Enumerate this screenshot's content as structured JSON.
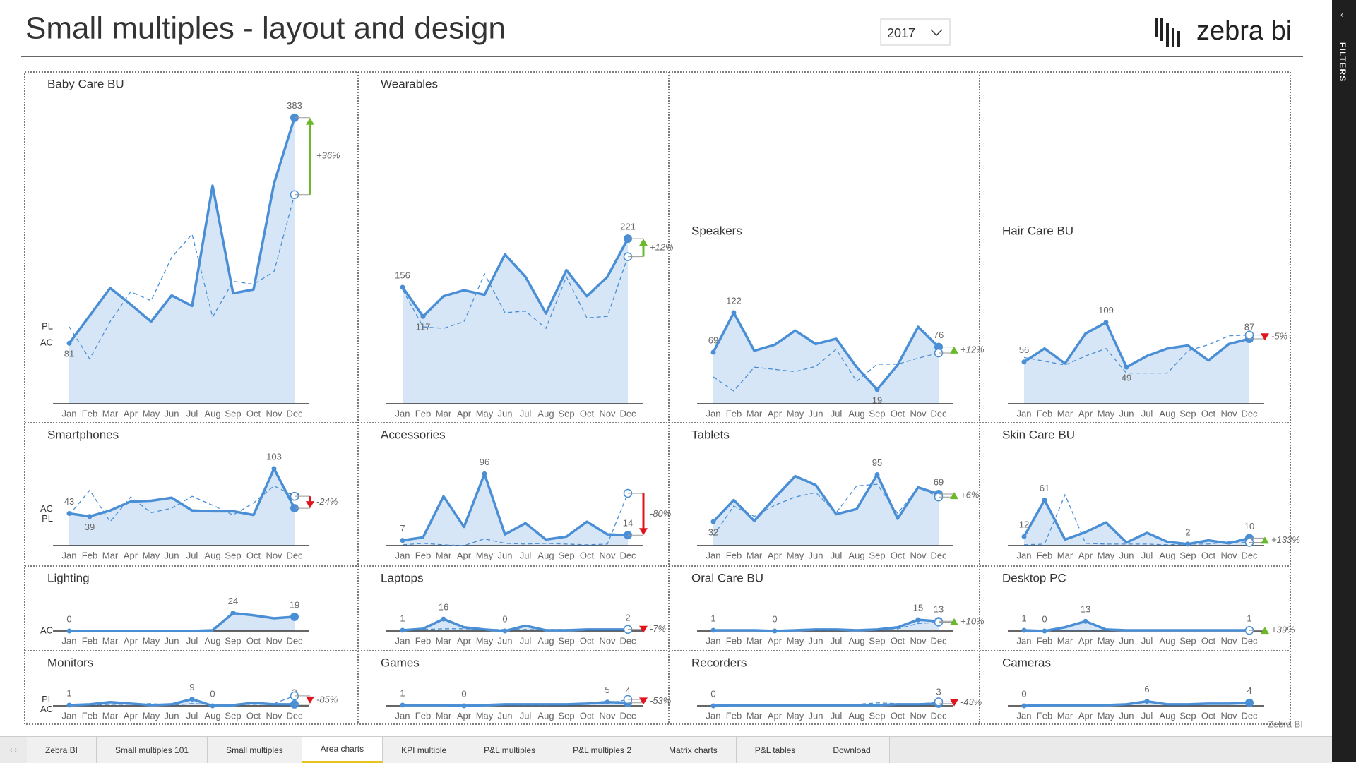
{
  "header": {
    "title": "Small multiples - layout and design",
    "year": "2017",
    "logo": "zebra bi",
    "filters": "FILTERS",
    "watermark": "Zebra BI"
  },
  "months": [
    "Jan",
    "Feb",
    "Mar",
    "Apr",
    "May",
    "Jun",
    "Jul",
    "Aug",
    "Sep",
    "Oct",
    "Nov",
    "Dec"
  ],
  "legend": {
    "ac": "AC",
    "pl": "PL"
  },
  "panels": [
    {
      "name": "Baby Care BU",
      "ac": [
        81,
        118,
        155,
        133,
        110,
        145,
        131,
        292,
        148,
        153,
        295,
        383
      ],
      "pl": [
        103,
        60,
        110,
        150,
        138,
        196,
        227,
        116,
        164,
        160,
        177,
        280
      ],
      "delta": 36,
      "delta_label": "+36%"
    },
    {
      "name": "Wearables",
      "ac": [
        156,
        117,
        144,
        152,
        146,
        200,
        170,
        121,
        179,
        144,
        170,
        221
      ],
      "pl": [
        153,
        103,
        101,
        110,
        174,
        122,
        124,
        101,
        170,
        115,
        117,
        197
      ],
      "delta": 12,
      "delta_label": "+12%"
    },
    {
      "name": "Speakers",
      "ac": [
        69,
        122,
        71,
        79,
        98,
        80,
        87,
        49,
        19,
        52,
        103,
        76
      ],
      "pl": [
        36,
        17,
        49,
        46,
        43,
        50,
        73,
        30,
        53,
        53,
        61,
        68
      ],
      "delta": 12,
      "delta_label": "+12%"
    },
    {
      "name": "Hair Care BU",
      "ac": [
        56,
        74,
        54,
        94,
        109,
        49,
        64,
        74,
        78,
        58,
        80,
        87
      ],
      "pl": [
        62,
        57,
        52,
        64,
        74,
        41,
        41,
        41,
        71,
        79,
        91,
        92
      ],
      "delta": -5,
      "delta_label": "-5%"
    },
    {
      "name": "Smartphones",
      "ac": [
        43,
        39,
        47,
        59,
        60,
        64,
        47,
        46,
        46,
        41,
        103,
        50
      ],
      "pl": [
        41,
        74,
        32,
        65,
        44,
        50,
        66,
        54,
        41,
        57,
        80,
        66
      ],
      "delta": -24,
      "delta_label": "-24%"
    },
    {
      "name": "Accessories",
      "ac": [
        7,
        11,
        66,
        25,
        96,
        15,
        30,
        8,
        12,
        32,
        15,
        14
      ],
      "pl": [
        1,
        3,
        1,
        0,
        9,
        3,
        2,
        3,
        2,
        1,
        2,
        70
      ],
      "delta": -80,
      "delta_label": "-80%"
    },
    {
      "name": "Tablets",
      "ac": [
        32,
        61,
        33,
        64,
        93,
        81,
        42,
        49,
        95,
        36,
        78,
        69
      ],
      "pl": [
        13,
        53,
        39,
        54,
        65,
        71,
        44,
        80,
        82,
        43,
        78,
        65
      ],
      "delta": 6,
      "delta_label": "+6%"
    },
    {
      "name": "Skin Care BU",
      "ac": [
        12,
        61,
        8,
        18,
        31,
        4,
        17,
        5,
        2,
        7,
        3,
        10
      ],
      "pl": [
        1,
        2,
        68,
        3,
        2,
        2,
        2,
        1,
        2,
        2,
        5,
        4.3
      ],
      "delta": 133,
      "delta_label": "+133%"
    },
    {
      "name": "Lighting",
      "ac": [
        0,
        0,
        0,
        0,
        0,
        0,
        0,
        1,
        24,
        21,
        17,
        19
      ]
    },
    {
      "name": "Laptops",
      "ac": [
        1,
        3,
        16,
        5,
        2,
        0,
        7,
        1,
        1,
        2,
        2,
        2
      ],
      "pl": [
        2,
        2,
        3,
        3,
        2,
        2,
        2,
        2,
        2,
        2,
        2,
        2.15
      ],
      "delta": -7,
      "delta_label": "-7%"
    },
    {
      "name": "Oral Care BU",
      "ac": [
        1,
        1,
        1,
        0,
        1,
        2,
        2,
        1,
        2,
        5,
        15,
        13
      ],
      "pl": [
        1,
        1,
        1,
        1,
        1,
        1,
        1,
        1,
        2,
        3,
        10,
        11.8
      ],
      "delta": 10,
      "delta_label": "+10%"
    },
    {
      "name": "Desktop PC",
      "ac": [
        1,
        0,
        5,
        13,
        2,
        1,
        1,
        1,
        1,
        1,
        1,
        1
      ],
      "pl": [
        1,
        1,
        1,
        1,
        1,
        1,
        1,
        1,
        1,
        1,
        1,
        0.72
      ],
      "delta": 39,
      "delta_label": "+39%"
    },
    {
      "name": "Monitors",
      "ac": [
        1,
        2,
        5,
        3,
        1,
        2,
        9,
        0,
        1,
        4,
        2,
        2
      ],
      "pl": [
        2,
        1,
        2,
        2,
        3,
        1,
        3,
        2,
        2,
        2,
        3,
        13.3
      ],
      "delta": -85,
      "delta_label": "-85%"
    },
    {
      "name": "Games",
      "ac": [
        1,
        1,
        1,
        0,
        1,
        2,
        2,
        2,
        2,
        3,
        5,
        4
      ],
      "pl": [
        1,
        1,
        1,
        1,
        1,
        1,
        1,
        1,
        2,
        2,
        3,
        8.5
      ],
      "delta": -53,
      "delta_label": "-53%"
    },
    {
      "name": "Recorders",
      "ac": [
        0,
        1,
        1,
        1,
        1,
        1,
        1,
        1,
        1,
        2,
        2,
        3
      ],
      "pl": [
        1,
        1,
        1,
        1,
        1,
        1,
        1,
        2,
        4,
        3,
        2,
        5.3
      ],
      "delta": -43,
      "delta_label": "-43%"
    },
    {
      "name": "Cameras",
      "ac": [
        0,
        1,
        1,
        1,
        1,
        2,
        6,
        2,
        2,
        3,
        3,
        4
      ]
    }
  ],
  "tabs": [
    "Zebra BI",
    "Small multiples 101",
    "Small multiples",
    "Area charts",
    "KPI multiple",
    "P&L multiples",
    "P&L multiples 2",
    "Matrix charts",
    "P&L tables",
    "Download"
  ]
}
